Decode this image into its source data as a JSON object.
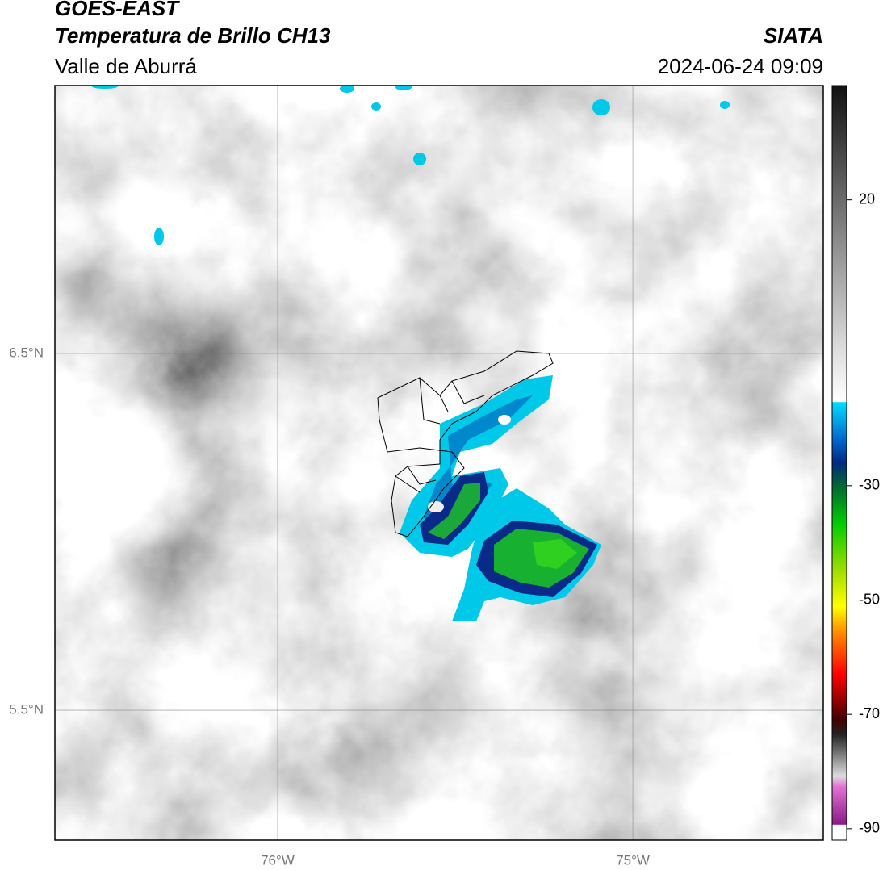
{
  "header": {
    "title": "GOES-EAST",
    "subtitle": "Temperatura de Brillo CH13",
    "region": "Valle de Aburrá",
    "source": "SIATA",
    "datetime": "2024-06-24 09:09"
  },
  "map": {
    "lat_lim": [
      5.136,
      7.251
    ],
    "lon_lim": [
      -76.627,
      -74.464
    ],
    "lat_ticks": [
      {
        "value": 6.5,
        "label": "6.5°N"
      },
      {
        "value": 5.5,
        "label": "5.5°N"
      }
    ],
    "lon_ticks": [
      {
        "value": -76,
        "label": "76°W"
      },
      {
        "value": -75,
        "label": "75°W"
      }
    ]
  },
  "colorbar": {
    "lim": [
      -92,
      40
    ],
    "ticks": [
      20,
      -30,
      -50,
      -70,
      -90
    ]
  }
}
